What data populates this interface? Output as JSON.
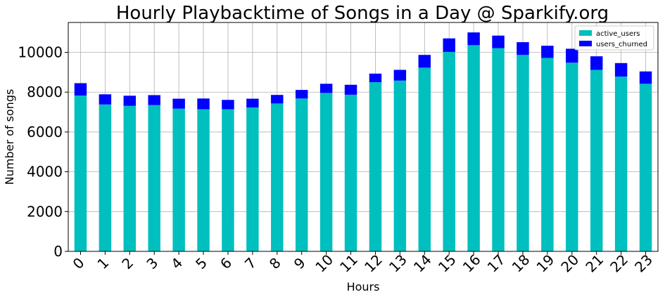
{
  "chart_data": {
    "type": "bar",
    "stacked": true,
    "title": "Hourly Playbacktime of Songs in a Day @ Sparkify.org",
    "xlabel": "Hours",
    "ylabel": "Number of songs",
    "ylim": [
      0,
      11500
    ],
    "yticks": [
      0,
      2000,
      4000,
      6000,
      8000,
      10000
    ],
    "grid": true,
    "legend_position": "top-right",
    "categories": [
      "0",
      "1",
      "2",
      "3",
      "4",
      "5",
      "6",
      "7",
      "8",
      "9",
      "10",
      "11",
      "12",
      "13",
      "14",
      "15",
      "16",
      "17",
      "18",
      "19",
      "20",
      "21",
      "22",
      "23"
    ],
    "series": [
      {
        "name": "active_users",
        "color": "#00bfbf",
        "values": [
          7830,
          7380,
          7310,
          7350,
          7170,
          7140,
          7140,
          7230,
          7430,
          7680,
          7960,
          7870,
          8500,
          8580,
          9230,
          10020,
          10360,
          10210,
          9870,
          9720,
          9480,
          9120,
          8780,
          8420
        ]
      },
      {
        "name": "users_churned",
        "color": "#0000ff",
        "values": [
          620,
          510,
          510,
          500,
          500,
          540,
          470,
          440,
          430,
          430,
          460,
          500,
          430,
          540,
          640,
          680,
          640,
          630,
          640,
          610,
          700,
          680,
          680,
          620
        ]
      }
    ]
  }
}
